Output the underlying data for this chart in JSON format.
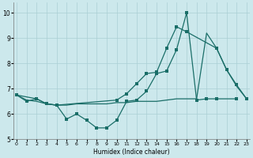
{
  "xlabel": "Humidex (Indice chaleur)",
  "xlim": [
    -0.3,
    23.3
  ],
  "ylim": [
    5.0,
    10.4
  ],
  "yticks": [
    5,
    6,
    7,
    8,
    9,
    10
  ],
  "xticks": [
    0,
    1,
    2,
    3,
    4,
    5,
    6,
    7,
    8,
    9,
    10,
    11,
    12,
    13,
    14,
    15,
    16,
    17,
    18,
    19,
    20,
    21,
    22,
    23
  ],
  "bg_color": "#cce8ec",
  "grid_color": "#aacfd5",
  "line_color": "#1a6e68",
  "line1_x": [
    0,
    1,
    2,
    3,
    4,
    5,
    6,
    7,
    8,
    9,
    10,
    11,
    12,
    13,
    14,
    15,
    16,
    17,
    18,
    19,
    20,
    22
  ],
  "line1_y": [
    6.75,
    6.5,
    6.6,
    6.4,
    6.35,
    5.8,
    6.0,
    5.75,
    5.45,
    5.45,
    5.75,
    6.5,
    6.55,
    6.9,
    7.6,
    7.7,
    8.55,
    10.0,
    6.55,
    6.6,
    6.6,
    6.6
  ],
  "line2_x": [
    0,
    2,
    3,
    4,
    10,
    11,
    12,
    13,
    14,
    15,
    16,
    17,
    20,
    21,
    22,
    23
  ],
  "line2_y": [
    6.75,
    6.6,
    6.4,
    6.35,
    6.55,
    6.8,
    7.2,
    7.6,
    7.65,
    8.6,
    9.45,
    9.25,
    8.6,
    7.75,
    7.15,
    6.6
  ],
  "line3_x": [
    0,
    1,
    2,
    3,
    4,
    5,
    6,
    7,
    8,
    9,
    10,
    11,
    12,
    13,
    14,
    15,
    16,
    17,
    18,
    19,
    20,
    21,
    22,
    23
  ],
  "line3_y": [
    6.75,
    6.55,
    6.5,
    6.4,
    6.35,
    6.35,
    6.4,
    6.4,
    6.4,
    6.4,
    6.45,
    6.45,
    6.5,
    6.5,
    6.5,
    6.55,
    6.6,
    6.6,
    6.6,
    9.2,
    8.6,
    7.75,
    7.1,
    6.6
  ]
}
